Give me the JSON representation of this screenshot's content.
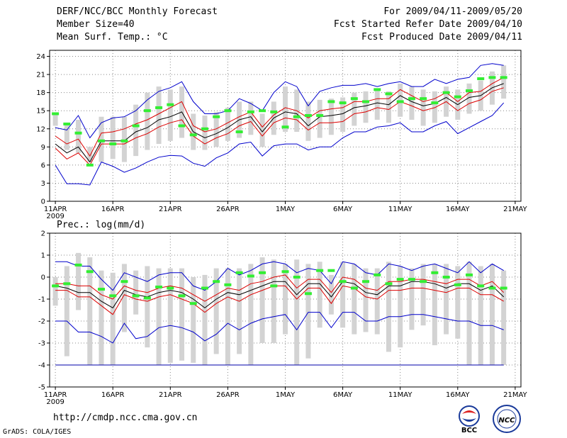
{
  "header": {
    "line1_left": "DERF/NCC/BCC Monthly Forecast",
    "line2_left": "Member Size=40",
    "line3_left": "Mean Surf. Temp.: °C",
    "line1_right": "For 2009/04/11-2009/05/20",
    "line2_right": "Fcst Started Refer Date 2009/04/10",
    "line3_right": "Fcst Produced Date 2009/04/11"
  },
  "footer": {
    "url": "http://cmdp.ncc.cma.gov.cn",
    "credit": "GrADS: COLA/IGES",
    "logo_left_text": "BCC",
    "logo_right_text": "NCC"
  },
  "colors": {
    "envelope": "#0000cc",
    "spread": "#dd0000",
    "mean": "#000000",
    "observed": "#33ee33",
    "box": "#d3d3d3",
    "floor": "#0000aa"
  },
  "chart_data": [
    {
      "type": "line",
      "title": "Mean Surf. Temp.: °C",
      "x_ticks": [
        "11APR",
        "16APR",
        "21APR",
        "26APR",
        "1MAY",
        "6MAY",
        "11MAY",
        "16MAY",
        "21MAY"
      ],
      "x_tick_days": [
        0,
        5,
        10,
        15,
        20,
        25,
        30,
        35,
        40
      ],
      "year_label": "2009",
      "ylim": [
        0,
        25
      ],
      "y_ticks": [
        0,
        3,
        6,
        9,
        12,
        15,
        18,
        21,
        24
      ],
      "days": [
        0,
        1,
        2,
        3,
        4,
        5,
        6,
        7,
        8,
        9,
        10,
        11,
        12,
        13,
        14,
        15,
        16,
        17,
        18,
        19,
        20,
        21,
        22,
        23,
        24,
        25,
        26,
        27,
        28,
        29,
        30,
        31,
        32,
        33,
        34,
        35,
        36,
        37,
        38,
        39
      ],
      "series": [
        {
          "name": "max",
          "values": [
            12.2,
            11.8,
            14.2,
            10.5,
            13,
            13.8,
            14,
            15,
            16.8,
            18.2,
            18.8,
            19.8,
            16.5,
            14.5,
            14.5,
            15,
            17,
            16.2,
            15,
            18,
            19.8,
            19,
            15.8,
            18.2,
            18.8,
            19.2,
            19.2,
            19.5,
            19,
            19.5,
            19.8,
            19,
            19,
            20.2,
            19.5,
            20.2,
            20.5,
            22.5,
            22.8,
            22.5
          ]
        },
        {
          "name": "upper",
          "values": [
            10.8,
            9.5,
            10.3,
            7.5,
            11.3,
            11.5,
            12,
            12.8,
            13.5,
            14.5,
            15.5,
            16.5,
            12.5,
            11.5,
            12,
            13,
            14,
            14.8,
            12.3,
            14.3,
            15.5,
            15,
            13.8,
            15,
            15.3,
            15.5,
            16.5,
            16.5,
            17,
            17,
            18.5,
            17.5,
            16.5,
            17,
            18,
            16.5,
            18,
            18.2,
            19.5,
            20.5
          ]
        },
        {
          "name": "mean",
          "values": [
            9.5,
            8,
            9,
            6.5,
            10,
            10,
            10,
            11.5,
            12.2,
            13.5,
            14,
            14.8,
            11.5,
            10.5,
            11.2,
            12.2,
            13.5,
            14,
            11.5,
            13.8,
            14.8,
            14.5,
            12.5,
            14,
            14.2,
            14.5,
            15.5,
            15.8,
            16.3,
            16,
            17.5,
            16.5,
            15.8,
            16.2,
            17.2,
            16,
            17.2,
            17.5,
            18.8,
            19.5
          ]
        },
        {
          "name": "lower",
          "values": [
            8.8,
            7,
            8,
            6,
            9.5,
            9.5,
            9.5,
            10.5,
            11.2,
            12.3,
            13,
            13.5,
            10.8,
            9.5,
            10.5,
            11.2,
            12.5,
            13.2,
            10.8,
            13,
            13.8,
            13.5,
            11.8,
            13,
            13,
            13.2,
            14.5,
            14.8,
            15.5,
            15.2,
            16.5,
            15.8,
            15,
            15.5,
            16.5,
            15,
            16.2,
            16.8,
            18.2,
            18.8
          ]
        },
        {
          "name": "min",
          "values": [
            6,
            2.9,
            2.9,
            2.7,
            6.5,
            5.8,
            4.8,
            5.5,
            6.5,
            7.3,
            7.6,
            7.5,
            6.3,
            5.8,
            7.2,
            8,
            9.5,
            9.8,
            7.5,
            9.2,
            9.5,
            9.5,
            8.5,
            9,
            9,
            10.5,
            11.5,
            11.5,
            12.3,
            12.5,
            13,
            11.5,
            11.5,
            12.5,
            13.2,
            11.2,
            12.2,
            13.2,
            14.2,
            16.3
          ]
        },
        {
          "name": "observed",
          "values": [
            14.5,
            12.8,
            11.3,
            6,
            10,
            9.5,
            10,
            12.5,
            15,
            15.5,
            16,
            12.5,
            11,
            12,
            14,
            15,
            11.5,
            14.8,
            15,
            14.8,
            12.3,
            14,
            14.2,
            14.2,
            16.5,
            16.3,
            17,
            16.5,
            18.5,
            17.8,
            16.5,
            17,
            17,
            16.3,
            18,
            17.3,
            18.3,
            20.3,
            20.5,
            20.5
          ]
        }
      ],
      "box_high": [
        14.5,
        13,
        13.5,
        9,
        14,
        14,
        14,
        16,
        18,
        19,
        18.5,
        19,
        14.5,
        14.2,
        14.8,
        15.5,
        16.5,
        16.5,
        14.5,
        16.5,
        19,
        18.5,
        16.5,
        16.8,
        17,
        17.2,
        18,
        18.2,
        18.5,
        18.2,
        19.5,
        19,
        18.5,
        18.2,
        19,
        18.5,
        19.5,
        20,
        21.5,
        22.5
      ],
      "box_low": [
        12.5,
        8.5,
        8,
        6.5,
        6.5,
        7,
        6.5,
        7.5,
        8.5,
        9.5,
        10,
        10.5,
        8.5,
        8.5,
        9,
        10,
        10.5,
        11,
        9,
        11,
        11.5,
        11.5,
        10,
        10.5,
        11,
        11.5,
        12.5,
        13,
        13.5,
        13,
        14,
        13.5,
        12.5,
        13,
        14,
        13.5,
        14.5,
        15,
        16,
        17
      ]
    },
    {
      "type": "line",
      "title": "Prec.: log(mm/d)",
      "x_ticks": [
        "11APR",
        "16APR",
        "21APR",
        "26APR",
        "1MAY",
        "6MAY",
        "11MAY",
        "16MAY",
        "21MAY"
      ],
      "x_tick_days": [
        0,
        5,
        10,
        15,
        20,
        25,
        30,
        35,
        40
      ],
      "year_label": "2009",
      "ylim": [
        -5,
        2
      ],
      "y_ticks": [
        -5,
        -4,
        -3,
        -2,
        -1,
        0,
        1,
        2
      ],
      "days": [
        0,
        1,
        2,
        3,
        4,
        5,
        6,
        7,
        8,
        9,
        10,
        11,
        12,
        13,
        14,
        15,
        16,
        17,
        18,
        19,
        20,
        21,
        22,
        23,
        24,
        25,
        26,
        27,
        28,
        29,
        30,
        31,
        32,
        33,
        34,
        35,
        36,
        37,
        38,
        39
      ],
      "series": [
        {
          "name": "max",
          "values": [
            0.7,
            0.7,
            0.5,
            0.5,
            -0.1,
            -0.6,
            0.2,
            0,
            -0.2,
            0.1,
            0.2,
            0.2,
            -0.4,
            -0.6,
            -0.2,
            0.4,
            0.1,
            0.3,
            0.6,
            0.7,
            0.6,
            0.2,
            0.4,
            0.3,
            -0.3,
            0.7,
            0.6,
            0.2,
            0.1,
            0.6,
            0.5,
            0.3,
            0.5,
            0.6,
            0.4,
            0.2,
            0.7,
            0.2,
            0.6,
            0.3
          ]
        },
        {
          "name": "upper",
          "values": [
            -0.3,
            -0.3,
            -0.4,
            -0.4,
            -0.8,
            -1,
            -0.4,
            -0.6,
            -0.7,
            -0.5,
            -0.4,
            -0.5,
            -0.8,
            -1.1,
            -0.8,
            -0.5,
            -0.6,
            -0.3,
            -0.2,
            0,
            0.1,
            -0.5,
            -0.1,
            -0.1,
            -0.7,
            0,
            -0.1,
            -0.5,
            -0.6,
            -0.2,
            -0.2,
            -0.1,
            -0.1,
            -0.2,
            -0.3,
            -0.1,
            -0.1,
            -0.4,
            -0.2,
            -0.7
          ]
        },
        {
          "name": "mean",
          "values": [
            -0.4,
            -0.5,
            -0.7,
            -0.7,
            -1.1,
            -1.4,
            -0.6,
            -0.8,
            -0.9,
            -0.7,
            -0.6,
            -0.7,
            -1,
            -1.4,
            -1,
            -0.7,
            -0.8,
            -0.6,
            -0.4,
            -0.2,
            -0.2,
            -0.8,
            -0.3,
            -0.3,
            -0.9,
            -0.2,
            -0.3,
            -0.7,
            -0.8,
            -0.4,
            -0.4,
            -0.2,
            -0.2,
            -0.3,
            -0.5,
            -0.3,
            -0.3,
            -0.6,
            -0.4,
            -0.9
          ]
        },
        {
          "name": "lower",
          "values": [
            -0.6,
            -0.6,
            -0.9,
            -0.9,
            -1.3,
            -1.7,
            -0.8,
            -1,
            -1.1,
            -0.9,
            -0.8,
            -1,
            -1.2,
            -1.6,
            -1.2,
            -0.9,
            -1.1,
            -0.8,
            -0.6,
            -0.4,
            -0.4,
            -1,
            -0.5,
            -0.5,
            -1.2,
            -0.4,
            -0.5,
            -0.9,
            -1,
            -0.6,
            -0.6,
            -0.5,
            -0.5,
            -0.6,
            -0.7,
            -0.5,
            -0.5,
            -0.8,
            -0.8,
            -1.1
          ]
        },
        {
          "name": "min",
          "values": [
            -2,
            -2,
            -2.5,
            -2.5,
            -2.7,
            -3,
            -2.1,
            -2.8,
            -2.7,
            -2.3,
            -2.2,
            -2.3,
            -2.5,
            -2.9,
            -2.6,
            -2.1,
            -2.4,
            -2.1,
            -1.9,
            -1.8,
            -1.7,
            -2.4,
            -1.6,
            -1.6,
            -2.3,
            -1.6,
            -1.6,
            -2,
            -2,
            -1.8,
            -1.8,
            -1.7,
            -1.7,
            -1.8,
            -1.9,
            -2,
            -2,
            -2.2,
            -2.2,
            -2.4
          ]
        },
        {
          "name": "observed",
          "values": [
            -0.4,
            -0.3,
            0.55,
            0.25,
            -0.55,
            -0.85,
            -0.2,
            -0.85,
            -0.95,
            -0.45,
            -0.5,
            -0.85,
            -1.2,
            -0.5,
            -0.2,
            -0.35,
            0.2,
            0.05,
            0.2,
            -0.4,
            0.25,
            0,
            -0.75,
            0.3,
            0.3,
            -0.2,
            -0.5,
            -0.2,
            0.1,
            -0.3,
            -0.1,
            -0.1,
            -0.2,
            0.2,
            0,
            -0.35,
            0.1,
            -0.4,
            -0.5,
            -0.5
          ]
        }
      ],
      "box_high": [
        0,
        0.5,
        1.1,
        0.9,
        0.3,
        0.2,
        0.6,
        0.3,
        0.5,
        0.4,
        0.4,
        0.4,
        0,
        0.1,
        0.4,
        0.4,
        0.4,
        0.6,
        0.9,
        0.8,
        0.6,
        0.8,
        0.6,
        0.7,
        0.1,
        0.7,
        0.6,
        0.4,
        0.4,
        0.7,
        0.5,
        0.4,
        0.6,
        0.6,
        0.6,
        0.5,
        0.7,
        0.5,
        0.6,
        0.3
      ],
      "box_low": [
        -1.3,
        -3.6,
        -1.5,
        -4,
        -4,
        -4,
        -2.5,
        -1.7,
        -3.2,
        -4,
        -3.9,
        -3.8,
        -3.9,
        -4,
        -3.5,
        -4,
        -3.5,
        -4,
        -3,
        -3,
        -2.6,
        -4,
        -3.7,
        -2.3,
        -1.7,
        -2.3,
        -2.6,
        -2.5,
        -2.6,
        -3.4,
        -3.2,
        -2.4,
        -2.2,
        -3.1,
        -2.6,
        -2.8,
        -4,
        -4,
        -4,
        -4
      ],
      "floor": -4
    }
  ]
}
